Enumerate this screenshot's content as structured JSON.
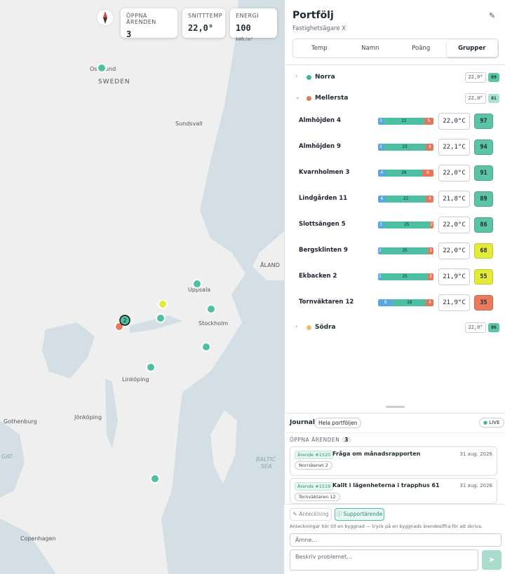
{
  "map": {
    "labels": [
      "Os",
      "und",
      "SWEDEN",
      "Sundsvall",
      "Uppsala",
      "Stockholm",
      "Linköping",
      "Jönköping",
      "Gothenburg",
      "Copenhagen",
      "ÅLAND",
      "BALTIC",
      "SEA",
      "GAT"
    ],
    "cluster_count": "2"
  },
  "stats": [
    {
      "label": "ÖPPNA ÄRENDEN",
      "value": "3"
    },
    {
      "label": "SNITTTEMP",
      "value": "22,0°"
    },
    {
      "label": "ENERGI",
      "value": "100",
      "unit": "kWh/m²"
    }
  ],
  "panel": {
    "title": "Portfölj",
    "subtitle": "Fastighetsägare X",
    "tabs": [
      "Temp",
      "Namn",
      "Poäng",
      "Grupper"
    ],
    "groups": [
      {
        "name": "Norra",
        "color": "#3fb59b",
        "temp": "22,0°",
        "score": "89"
      },
      {
        "name": "Mellersta",
        "color": "#e07a5f",
        "temp": "22,0°",
        "score": "81"
      },
      {
        "name": "Södra",
        "color": "#e8c170",
        "temp": "22,0°",
        "score": "86"
      }
    ],
    "segment_colors": [
      "#5aa6e0",
      "#4dbfa3",
      "#e4775b"
    ],
    "buildings": [
      {
        "name": "Almhöjden 4",
        "segments": [
          3,
          22,
          5
        ],
        "temp": "22,0°C",
        "score": 97,
        "color": "#5cc4a6"
      },
      {
        "name": "Almhöjden 9",
        "segments": [
          3,
          23,
          4
        ],
        "temp": "22,1°C",
        "score": 94,
        "color": "#5cc4a6"
      },
      {
        "name": "Kvarnholmen 3",
        "segments": [
          4,
          20,
          6
        ],
        "temp": "22,0°C",
        "score": 91,
        "color": "#5cc4a6"
      },
      {
        "name": "Lindgården 11",
        "segments": [
          4,
          22,
          4
        ],
        "temp": "21,8°C",
        "score": 89,
        "color": "#5cc4a6"
      },
      {
        "name": "Slottsängen 5",
        "segments": [
          3,
          25,
          2
        ],
        "temp": "22,0°C",
        "score": 86,
        "color": "#5cc4a6"
      },
      {
        "name": "Bergsklinten 9",
        "segments": [
          2,
          25,
          3
        ],
        "temp": "22,0°C",
        "score": 68,
        "color": "#e4ea3a"
      },
      {
        "name": "Ekbacken 2",
        "segments": [
          2,
          25,
          3
        ],
        "temp": "21,9°C",
        "score": 55,
        "color": "#e4ea3a"
      },
      {
        "name": "Tornväktaren 12",
        "segments": [
          8,
          18,
          4
        ],
        "temp": "21,9°C",
        "score": 35,
        "color": "#ec7a5e"
      }
    ]
  },
  "journal": {
    "title": "Journal",
    "scope": "Hela portföljen",
    "live": "LIVE",
    "open_label": "ÖPPNA ÄRENDEN",
    "open_count": "3",
    "tickets": [
      {
        "id": "Ärende #1520",
        "title": "Fråga om månadsrapporten",
        "date": "31 aug. 2026",
        "building": "Norrskenet 2"
      },
      {
        "id": "Ärende #1519",
        "title": "Kallt i lägenheterna i trapphus 61",
        "date": "31 aug. 2026",
        "building": "Tornväktaren 12"
      }
    ],
    "modes": [
      "Anteckning",
      "Supportärende"
    ],
    "hint": "Anteckningar hör till en byggnad — tryck på en byggnads ärendesiffra för att skriva.",
    "subject_placeholder": "Ämne…",
    "body_placeholder": "Beskriv problemet…"
  }
}
